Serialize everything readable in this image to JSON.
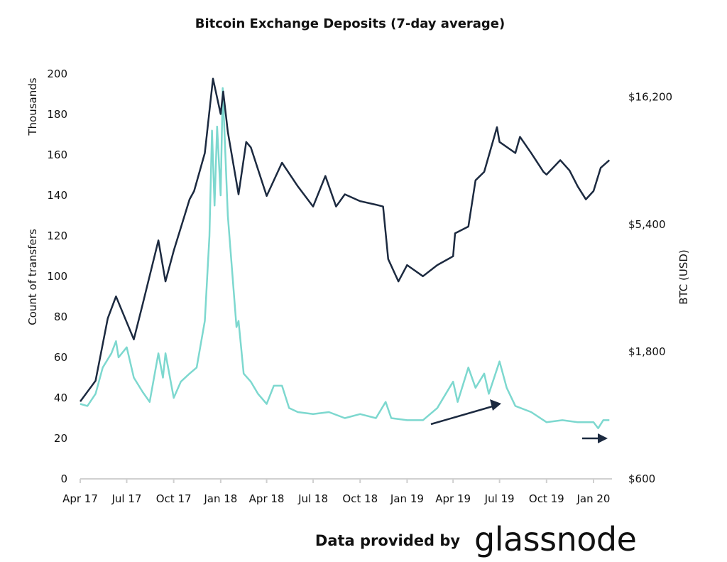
{
  "chart_data": {
    "type": "line",
    "title": "Bitcoin Exchange Deposits (7-day average)",
    "ylabel_left_top": "Thousands",
    "ylabel_left": "Count of transfers",
    "ylabel_right": "BTC (USD)",
    "ylim_left": [
      0,
      200
    ],
    "yticks_left": [
      "0",
      "20",
      "40",
      "60",
      "80",
      "100",
      "120",
      "140",
      "160",
      "180",
      "200"
    ],
    "y_right_scale": "log",
    "ylim_right": [
      600,
      19800
    ],
    "yticks_right": [
      {
        "value": 600,
        "label": "$600"
      },
      {
        "value": 1800,
        "label": "$1,800"
      },
      {
        "value": 5400,
        "label": "$5,400"
      },
      {
        "value": 16200,
        "label": "$16,200"
      }
    ],
    "xlim": [
      "2017-04-01",
      "2020-02-05"
    ],
    "xticks": [
      {
        "date": "2017-04-01",
        "label": "Apr 17"
      },
      {
        "date": "2017-07-01",
        "label": "Jul 17"
      },
      {
        "date": "2017-10-01",
        "label": "Oct 17"
      },
      {
        "date": "2018-01-01",
        "label": "Jan 18"
      },
      {
        "date": "2018-04-01",
        "label": "Apr 18"
      },
      {
        "date": "2018-07-01",
        "label": "Jul 18"
      },
      {
        "date": "2018-10-01",
        "label": "Oct 18"
      },
      {
        "date": "2019-01-01",
        "label": "Jan 19"
      },
      {
        "date": "2019-04-01",
        "label": "Apr 19"
      },
      {
        "date": "2019-07-01",
        "label": "Jul 19"
      },
      {
        "date": "2019-10-01",
        "label": "Oct 19"
      },
      {
        "date": "2020-01-01",
        "label": "Jan 20"
      }
    ],
    "grid": false,
    "legend": "none",
    "series": [
      {
        "axis": "left",
        "color": "#7dd8cf",
        "points": [
          [
            "2017-04-01",
            37
          ],
          [
            "2017-04-15",
            36
          ],
          [
            "2017-05-01",
            42
          ],
          [
            "2017-05-15",
            55
          ],
          [
            "2017-06-01",
            62
          ],
          [
            "2017-06-10",
            68
          ],
          [
            "2017-06-15",
            60
          ],
          [
            "2017-07-01",
            65
          ],
          [
            "2017-07-15",
            50
          ],
          [
            "2017-08-01",
            43
          ],
          [
            "2017-08-15",
            38
          ],
          [
            "2017-09-01",
            62
          ],
          [
            "2017-09-10",
            50
          ],
          [
            "2017-09-15",
            62
          ],
          [
            "2017-10-01",
            40
          ],
          [
            "2017-10-15",
            48
          ],
          [
            "2017-11-01",
            52
          ],
          [
            "2017-11-15",
            55
          ],
          [
            "2017-12-01",
            78
          ],
          [
            "2017-12-10",
            120
          ],
          [
            "2017-12-15",
            172
          ],
          [
            "2017-12-20",
            135
          ],
          [
            "2017-12-25",
            174
          ],
          [
            "2018-01-01",
            140
          ],
          [
            "2018-01-05",
            193
          ],
          [
            "2018-01-15",
            130
          ],
          [
            "2018-02-01",
            75
          ],
          [
            "2018-02-05",
            78
          ],
          [
            "2018-02-15",
            52
          ],
          [
            "2018-03-01",
            48
          ],
          [
            "2018-03-15",
            42
          ],
          [
            "2018-04-01",
            37
          ],
          [
            "2018-04-15",
            46
          ],
          [
            "2018-05-01",
            46
          ],
          [
            "2018-05-15",
            35
          ],
          [
            "2018-06-01",
            33
          ],
          [
            "2018-07-01",
            32
          ],
          [
            "2018-08-01",
            33
          ],
          [
            "2018-09-01",
            30
          ],
          [
            "2018-10-01",
            32
          ],
          [
            "2018-11-01",
            30
          ],
          [
            "2018-11-20",
            38
          ],
          [
            "2018-12-01",
            30
          ],
          [
            "2019-01-01",
            29
          ],
          [
            "2019-02-01",
            29
          ],
          [
            "2019-03-01",
            35
          ],
          [
            "2019-04-01",
            48
          ],
          [
            "2019-04-10",
            38
          ],
          [
            "2019-05-01",
            55
          ],
          [
            "2019-05-15",
            45
          ],
          [
            "2019-06-01",
            52
          ],
          [
            "2019-06-10",
            42
          ],
          [
            "2019-07-01",
            58
          ],
          [
            "2019-07-15",
            45
          ],
          [
            "2019-08-01",
            36
          ],
          [
            "2019-09-01",
            33
          ],
          [
            "2019-10-01",
            28
          ],
          [
            "2019-11-01",
            29
          ],
          [
            "2019-12-01",
            28
          ],
          [
            "2020-01-01",
            28
          ],
          [
            "2020-01-10",
            25
          ],
          [
            "2020-01-20",
            29
          ],
          [
            "2020-02-01",
            29
          ]
        ]
      },
      {
        "axis": "right",
        "color": "#1c2a40",
        "points": [
          [
            "2017-04-01",
            1170
          ],
          [
            "2017-05-01",
            1400
          ],
          [
            "2017-05-25",
            2400
          ],
          [
            "2017-06-10",
            2900
          ],
          [
            "2017-07-15",
            2000
          ],
          [
            "2017-08-01",
            2700
          ],
          [
            "2017-09-01",
            4700
          ],
          [
            "2017-09-15",
            3300
          ],
          [
            "2017-10-01",
            4300
          ],
          [
            "2017-11-01",
            6700
          ],
          [
            "2017-11-10",
            7200
          ],
          [
            "2017-12-01",
            10000
          ],
          [
            "2017-12-17",
            19000
          ],
          [
            "2018-01-01",
            14000
          ],
          [
            "2018-01-06",
            17000
          ],
          [
            "2018-01-15",
            12000
          ],
          [
            "2018-02-05",
            7000
          ],
          [
            "2018-02-20",
            11000
          ],
          [
            "2018-03-01",
            10500
          ],
          [
            "2018-04-01",
            6900
          ],
          [
            "2018-05-01",
            9200
          ],
          [
            "2018-06-01",
            7500
          ],
          [
            "2018-07-01",
            6300
          ],
          [
            "2018-07-25",
            8200
          ],
          [
            "2018-08-15",
            6300
          ],
          [
            "2018-09-01",
            7000
          ],
          [
            "2018-10-01",
            6600
          ],
          [
            "2018-11-01",
            6400
          ],
          [
            "2018-11-15",
            6300
          ],
          [
            "2018-11-25",
            4000
          ],
          [
            "2018-12-15",
            3300
          ],
          [
            "2019-01-01",
            3800
          ],
          [
            "2019-02-01",
            3450
          ],
          [
            "2019-03-01",
            3800
          ],
          [
            "2019-04-01",
            4100
          ],
          [
            "2019-04-05",
            5000
          ],
          [
            "2019-05-01",
            5300
          ],
          [
            "2019-05-15",
            7900
          ],
          [
            "2019-06-01",
            8500
          ],
          [
            "2019-06-26",
            12500
          ],
          [
            "2019-07-01",
            11000
          ],
          [
            "2019-08-01",
            10000
          ],
          [
            "2019-08-10",
            11500
          ],
          [
            "2019-09-01",
            10000
          ],
          [
            "2019-09-25",
            8500
          ],
          [
            "2019-10-01",
            8300
          ],
          [
            "2019-10-28",
            9400
          ],
          [
            "2019-11-15",
            8600
          ],
          [
            "2019-12-01",
            7500
          ],
          [
            "2019-12-17",
            6700
          ],
          [
            "2020-01-01",
            7200
          ],
          [
            "2020-01-15",
            8800
          ],
          [
            "2020-02-01",
            9400
          ]
        ]
      }
    ]
  },
  "footer": {
    "text": "Data provided by",
    "logo": "glassnode"
  }
}
